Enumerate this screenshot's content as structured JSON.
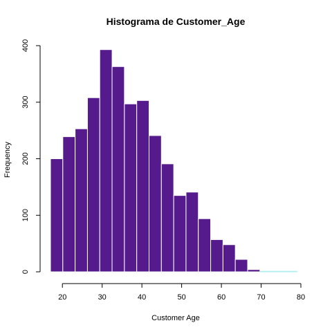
{
  "chart_data": {
    "type": "bar",
    "title": "Histograma de Customer_Age",
    "xlabel": "Customer Age",
    "ylabel": "Frequency",
    "bin_width": 3.1,
    "bins": [
      {
        "x0": 17.0,
        "x1": 20.1,
        "count": 200
      },
      {
        "x0": 20.1,
        "x1": 23.2,
        "count": 239
      },
      {
        "x0": 23.2,
        "x1": 26.3,
        "count": 253
      },
      {
        "x0": 26.3,
        "x1": 29.4,
        "count": 308
      },
      {
        "x0": 29.4,
        "x1": 32.5,
        "count": 393
      },
      {
        "x0": 32.5,
        "x1": 35.6,
        "count": 363
      },
      {
        "x0": 35.6,
        "x1": 38.7,
        "count": 297
      },
      {
        "x0": 38.7,
        "x1": 41.8,
        "count": 303
      },
      {
        "x0": 41.8,
        "x1": 44.9,
        "count": 241
      },
      {
        "x0": 44.9,
        "x1": 48.0,
        "count": 191
      },
      {
        "x0": 48.0,
        "x1": 51.1,
        "count": 135
      },
      {
        "x0": 51.1,
        "x1": 54.2,
        "count": 141
      },
      {
        "x0": 54.2,
        "x1": 57.3,
        "count": 94
      },
      {
        "x0": 57.3,
        "x1": 60.4,
        "count": 57
      },
      {
        "x0": 60.4,
        "x1": 63.5,
        "count": 48
      },
      {
        "x0": 63.5,
        "x1": 66.6,
        "count": 22
      },
      {
        "x0": 66.6,
        "x1": 69.7,
        "count": 4
      },
      {
        "x0": 69.7,
        "x1": 72.8,
        "count": 1
      },
      {
        "x0": 72.8,
        "x1": 75.9,
        "count": 1
      },
      {
        "x0": 75.9,
        "x1": 79.0,
        "count": 1
      }
    ],
    "xlim": [
      17,
      80
    ],
    "ylim": [
      0,
      400
    ],
    "xticks": [
      "20",
      "30",
      "40",
      "50",
      "60",
      "70",
      "80"
    ],
    "yticks": [
      "0",
      "100",
      "200",
      "300",
      "400"
    ],
    "grid": false,
    "colors": {
      "bar_fill": "#551a8b",
      "bar_border": "#ffffff",
      "sparse_bar_fill": "#aeeeee"
    }
  }
}
